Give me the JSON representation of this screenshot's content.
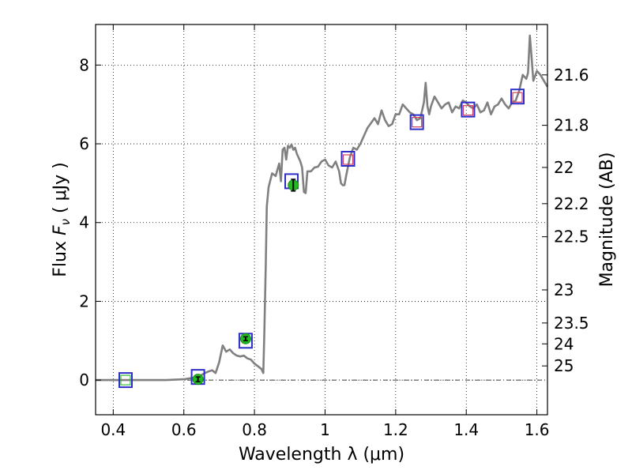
{
  "chart_data": {
    "type": "line",
    "xlabel": "Wavelength  λ (μm)",
    "ylabel_prefix": "Flux  ",
    "ylabel_symbol": "F",
    "ylabel_sub": "ν",
    "ylabel_suffix": "  ( μJy )",
    "y2label": "Magnitude (AB)",
    "xlim": [
      0.35,
      1.63
    ],
    "ylim": [
      -0.88,
      9.03
    ],
    "grid": true,
    "x_ticks": [
      {
        "v": 0.4,
        "label": "0.4"
      },
      {
        "v": 0.6,
        "label": "0.6"
      },
      {
        "v": 0.8,
        "label": "0.8"
      },
      {
        "v": 1.0,
        "label": "1"
      },
      {
        "v": 1.2,
        "label": "1.2"
      },
      {
        "v": 1.4,
        "label": "1.4"
      },
      {
        "v": 1.6,
        "label": "1.6"
      }
    ],
    "y_ticks": [
      {
        "v": 0,
        "label": "0"
      },
      {
        "v": 2,
        "label": "2"
      },
      {
        "v": 4,
        "label": "4"
      },
      {
        "v": 6,
        "label": "6"
      },
      {
        "v": 8,
        "label": "8"
      }
    ],
    "mag_ticks": [
      {
        "flux": 7.75,
        "label": "21.6"
      },
      {
        "flux": 6.47,
        "label": "21.8"
      },
      {
        "flux": 5.4,
        "label": "22"
      },
      {
        "flux": 4.48,
        "label": "22.2"
      },
      {
        "flux": 3.64,
        "label": "22.5"
      },
      {
        "flux": 2.29,
        "label": "23"
      },
      {
        "flux": 1.45,
        "label": "23.5"
      },
      {
        "flux": 0.92,
        "label": "24"
      },
      {
        "flux": 0.36,
        "label": "25"
      }
    ],
    "series": [
      {
        "style": "spectrum",
        "color": "#808080",
        "x": [
          0.35,
          0.4,
          0.45,
          0.5,
          0.55,
          0.6,
          0.62,
          0.64,
          0.66,
          0.67,
          0.68,
          0.69,
          0.7,
          0.71,
          0.72,
          0.73,
          0.74,
          0.75,
          0.76,
          0.77,
          0.78,
          0.79,
          0.8,
          0.81,
          0.82,
          0.825,
          0.828,
          0.832,
          0.835,
          0.84,
          0.85,
          0.86,
          0.87,
          0.875,
          0.88,
          0.885,
          0.89,
          0.895,
          0.9,
          0.905,
          0.91,
          0.915,
          0.92,
          0.93,
          0.935,
          0.94,
          0.945,
          0.95,
          0.96,
          0.97,
          0.98,
          0.99,
          1.0,
          1.01,
          1.02,
          1.03,
          1.04,
          1.045,
          1.05,
          1.055,
          1.06,
          1.07,
          1.08,
          1.09,
          1.1,
          1.12,
          1.14,
          1.15,
          1.16,
          1.17,
          1.18,
          1.19,
          1.2,
          1.21,
          1.22,
          1.23,
          1.24,
          1.25,
          1.26,
          1.27,
          1.28,
          1.285,
          1.29,
          1.295,
          1.3,
          1.31,
          1.32,
          1.33,
          1.34,
          1.35,
          1.36,
          1.37,
          1.38,
          1.39,
          1.4,
          1.41,
          1.42,
          1.43,
          1.44,
          1.45,
          1.46,
          1.47,
          1.48,
          1.49,
          1.5,
          1.51,
          1.52,
          1.53,
          1.54,
          1.55,
          1.56,
          1.57,
          1.575,
          1.58,
          1.585,
          1.59,
          1.6,
          1.61,
          1.62,
          1.63
        ],
        "y": [
          0.0,
          0.0,
          0.0,
          0.0,
          0.0,
          0.02,
          0.05,
          0.08,
          0.18,
          0.22,
          0.25,
          0.18,
          0.45,
          0.88,
          0.72,
          0.78,
          0.68,
          0.62,
          0.6,
          0.62,
          0.55,
          0.52,
          0.42,
          0.35,
          0.28,
          0.18,
          1.2,
          2.9,
          4.4,
          4.9,
          5.25,
          5.18,
          5.5,
          5.05,
          5.85,
          5.9,
          5.6,
          5.95,
          5.9,
          5.98,
          5.85,
          5.9,
          5.75,
          5.55,
          5.4,
          4.78,
          4.75,
          5.3,
          5.3,
          5.4,
          5.42,
          5.55,
          5.6,
          5.45,
          5.4,
          5.55,
          5.3,
          5.0,
          4.95,
          4.95,
          5.2,
          5.65,
          5.9,
          5.85,
          6.0,
          6.4,
          6.65,
          6.5,
          6.85,
          6.6,
          6.45,
          6.5,
          6.75,
          6.75,
          7.0,
          6.9,
          6.8,
          6.75,
          6.6,
          6.65,
          7.05,
          7.55,
          6.95,
          6.75,
          6.95,
          7.2,
          7.05,
          6.9,
          7.0,
          7.05,
          6.8,
          6.95,
          6.9,
          7.1,
          7.05,
          6.95,
          6.9,
          7.0,
          6.8,
          6.85,
          7.05,
          6.75,
          6.95,
          7.0,
          7.15,
          7.0,
          6.9,
          7.05,
          7.1,
          7.35,
          7.75,
          7.65,
          7.8,
          8.75,
          8.2,
          7.6,
          7.85,
          7.75,
          7.6,
          7.45
        ]
      },
      {
        "style": "model-photometry",
        "name": "",
        "marker": "open-square",
        "color": "#2d2dc8",
        "x": [
          0.435,
          0.64,
          0.775,
          0.905,
          1.065,
          1.26,
          1.405,
          1.545
        ],
        "y": [
          0.0,
          0.08,
          1.0,
          5.05,
          5.62,
          6.55,
          6.87,
          7.2
        ]
      },
      {
        "style": "observed-photometry",
        "name": "",
        "marker": "filled-circle",
        "color": "#22bb22",
        "x": [
          0.64,
          0.775,
          0.91
        ],
        "y": [
          0.02,
          1.05,
          4.95
        ],
        "yerr": [
          0.06,
          0.05,
          0.15
        ]
      },
      {
        "style": "upper-photometry",
        "name": "",
        "marker": "open-square-small",
        "color": "#d04060",
        "x": [
          1.065,
          1.26,
          1.405,
          1.545
        ],
        "y": [
          5.6,
          6.55,
          6.85,
          7.18
        ]
      },
      {
        "style": "faint-blue-photometry",
        "name": "",
        "marker": "open-square-small",
        "color": "#33bb33",
        "x": [
          0.435
        ],
        "y": [
          0.0
        ]
      }
    ],
    "zero_line": {
      "y": 0,
      "style": "dash-dot"
    }
  }
}
